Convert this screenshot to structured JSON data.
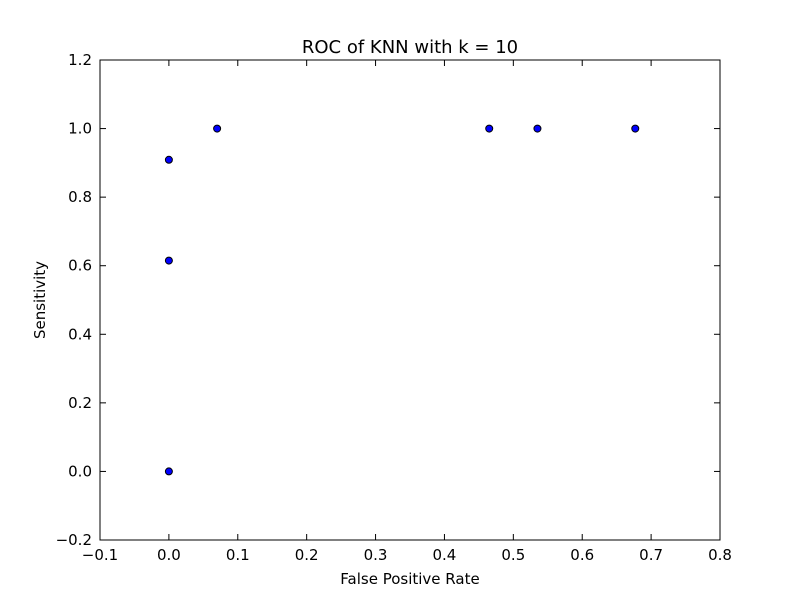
{
  "chart_data": {
    "type": "scatter",
    "title": "ROC of KNN with k = 10",
    "xlabel": "False Positive Rate",
    "ylabel": "Sensitivity",
    "xlim": [
      -0.1,
      0.8
    ],
    "ylim": [
      -0.2,
      1.2
    ],
    "x_ticks": [
      -0.1,
      0.0,
      0.1,
      0.2,
      0.3,
      0.4,
      0.5,
      0.6,
      0.7,
      0.8
    ],
    "x_tick_labels": [
      "−0.1",
      "0.0",
      "0.1",
      "0.2",
      "0.3",
      "0.4",
      "0.5",
      "0.6",
      "0.7",
      "0.8"
    ],
    "y_ticks": [
      -0.2,
      0.0,
      0.2,
      0.4,
      0.6,
      0.8,
      1.0,
      1.2
    ],
    "y_tick_labels": [
      "−0.2",
      "0.0",
      "0.2",
      "0.4",
      "0.6",
      "0.8",
      "1.0",
      "1.2"
    ],
    "grid": false,
    "marker_color": "#0000ff",
    "points": [
      {
        "x": 0.0,
        "y": 0.0
      },
      {
        "x": 0.0,
        "y": 0.615
      },
      {
        "x": 0.0,
        "y": 0.909
      },
      {
        "x": 0.07,
        "y": 1.0
      },
      {
        "x": 0.465,
        "y": 1.0
      },
      {
        "x": 0.535,
        "y": 1.0
      },
      {
        "x": 0.677,
        "y": 1.0
      }
    ]
  }
}
